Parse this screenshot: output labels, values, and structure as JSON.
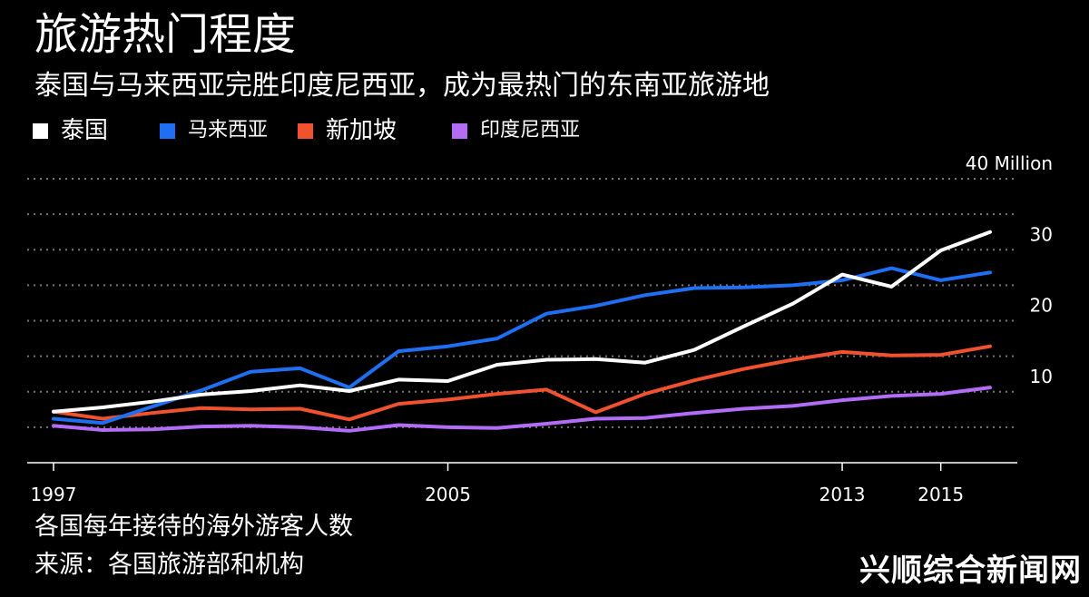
{
  "header": {
    "title": "旅游热门程度",
    "subtitle": "泰国与马来西亚完胜印度尼西亚，成为最热门的东南亚旅游地"
  },
  "footer": {
    "note": "各国每年接待的海外游客人数",
    "source": "来源：各国旅游部和机构"
  },
  "watermark": "兴顺综合新闻网",
  "colors": {
    "background": "#000000",
    "thailand": "#ffffff",
    "malaysia": "#1f6ff2",
    "singapore": "#f0512f",
    "indonesia": "#b36cf5",
    "grid": "#777777"
  },
  "chart_data": {
    "type": "line",
    "title": "旅游热门程度",
    "subtitle": "泰国与马来西亚完胜印度尼西亚，成为最热门的东南亚旅游地",
    "xlabel": "",
    "ylabel": "",
    "x": [
      1997,
      1998,
      1999,
      2000,
      2001,
      2002,
      2003,
      2004,
      2005,
      2006,
      2007,
      2008,
      2009,
      2010,
      2011,
      2012,
      2013,
      2014,
      2015,
      2016
    ],
    "xlim": [
      1997,
      2016
    ],
    "ylim": [
      0,
      40
    ],
    "x_ticks": [
      1997,
      2005,
      2013,
      2015
    ],
    "x_tick_labels": [
      "1997",
      "2005",
      "2013",
      "2015"
    ],
    "y_ticks": [
      5,
      10,
      15,
      20,
      25,
      30,
      35,
      40
    ],
    "y_tick_labels": [
      {
        "value": 10,
        "label": "10"
      },
      {
        "value": 20,
        "label": "20"
      },
      {
        "value": 30,
        "label": "30"
      },
      {
        "value": 40,
        "label": "40 Million"
      }
    ],
    "grid": true,
    "legend_position": "top-left",
    "series": [
      {
        "key": "thailand",
        "name": "泰国",
        "color": "#ffffff",
        "values": [
          7.2,
          7.8,
          8.6,
          9.6,
          10.1,
          10.9,
          10.1,
          11.7,
          11.5,
          13.8,
          14.5,
          14.6,
          14.1,
          15.9,
          19.2,
          22.4,
          26.5,
          24.8,
          29.9,
          32.5
        ]
      },
      {
        "key": "malaysia",
        "name": "马来西亚",
        "color": "#1f6ff2",
        "values": [
          6.2,
          5.6,
          7.9,
          10.2,
          12.8,
          13.3,
          10.6,
          15.7,
          16.4,
          17.5,
          21.0,
          22.1,
          23.6,
          24.6,
          24.7,
          25.0,
          25.7,
          27.4,
          25.7,
          26.8
        ]
      },
      {
        "key": "singapore",
        "name": "新加坡",
        "color": "#f0512f",
        "values": [
          7.2,
          6.2,
          7.0,
          7.7,
          7.5,
          7.6,
          6.1,
          8.3,
          8.9,
          9.7,
          10.3,
          7.1,
          9.7,
          11.6,
          13.2,
          14.5,
          15.6,
          15.1,
          15.2,
          16.4
        ]
      },
      {
        "key": "indonesia",
        "name": "印度尼西亚",
        "color": "#b36cf5",
        "values": [
          5.2,
          4.6,
          4.7,
          5.1,
          5.2,
          5.0,
          4.5,
          5.3,
          5.0,
          4.9,
          5.5,
          6.2,
          6.3,
          7.0,
          7.6,
          8.0,
          8.8,
          9.4,
          9.7,
          10.6
        ]
      }
    ]
  }
}
